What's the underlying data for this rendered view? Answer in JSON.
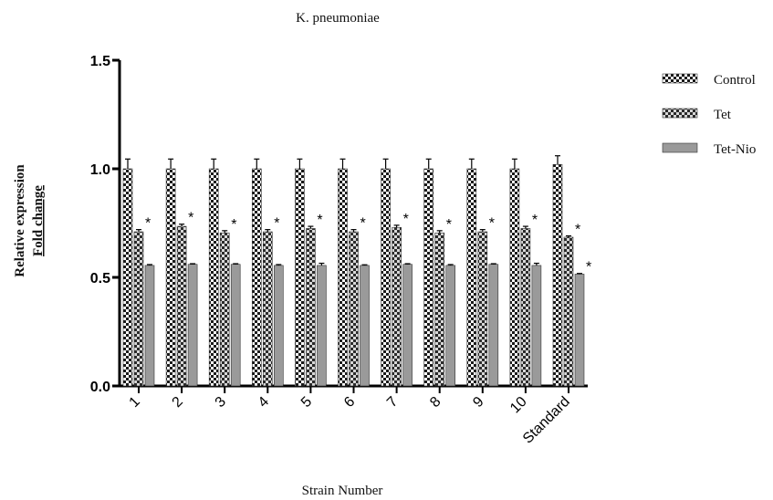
{
  "chart_data": {
    "type": "bar",
    "title": "K. pneumoniae",
    "xlabel": "Strain Number",
    "ylabel_line1": "Relative expression",
    "ylabel_line2": "Fold change",
    "ylim": [
      0,
      1.5
    ],
    "yticks": [
      "0.0",
      "0.5",
      "1.0",
      "1.5"
    ],
    "ytick_values": [
      0,
      0.5,
      1.0,
      1.5
    ],
    "categories": [
      "1",
      "2",
      "3",
      "4",
      "5",
      "6",
      "7",
      "8",
      "9",
      "10",
      "Standard"
    ],
    "series": [
      {
        "name": "Control",
        "pattern": "checker",
        "values": [
          1.0,
          1.0,
          1.0,
          1.0,
          1.0,
          1.0,
          1.0,
          1.0,
          1.0,
          1.0,
          1.02
        ],
        "errors": [
          0.045,
          0.045,
          0.045,
          0.045,
          0.045,
          0.045,
          0.045,
          0.045,
          0.045,
          0.045,
          0.04
        ],
        "significance": [
          "",
          "",
          "",
          "",
          "",
          "",
          "",
          "",
          "",
          "",
          ""
        ]
      },
      {
        "name": "Tet",
        "pattern": "dark-check",
        "values": [
          0.71,
          0.735,
          0.705,
          0.71,
          0.725,
          0.71,
          0.73,
          0.705,
          0.71,
          0.725,
          0.685
        ],
        "errors": [
          0.01,
          0.01,
          0.01,
          0.01,
          0.01,
          0.01,
          0.01,
          0.01,
          0.01,
          0.01,
          0.006
        ],
        "significance": [
          "*",
          "*",
          "*",
          "*",
          "*",
          "*",
          "*",
          "*",
          "*",
          "*",
          "*"
        ]
      },
      {
        "name": "Tet-Nio",
        "pattern": "gray",
        "values": [
          0.555,
          0.56,
          0.56,
          0.555,
          0.555,
          0.555,
          0.56,
          0.555,
          0.56,
          0.555,
          0.515
        ],
        "errors": [
          0.004,
          0.003,
          0.003,
          0.004,
          0.01,
          0.003,
          0.003,
          0.004,
          0.003,
          0.01,
          0.003
        ],
        "significance": [
          "",
          "",
          "",
          "",
          "",
          "",
          "",
          "",
          "",
          "",
          "*"
        ]
      }
    ],
    "legend_position": "top-right",
    "grid": false
  }
}
